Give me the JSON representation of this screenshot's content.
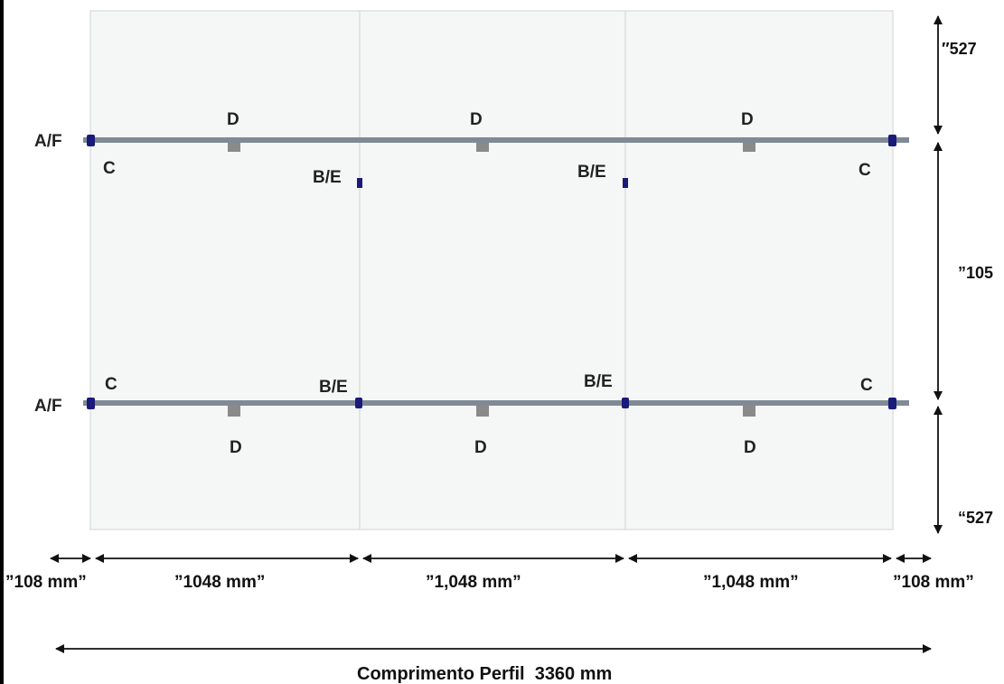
{
  "labels": {
    "af_top": "A/F",
    "af_bottom": "A/F",
    "c_top_left": "C",
    "c_top_right": "C",
    "c_bottom_left": "C",
    "c_bottom_right": "C",
    "be_top_1": "B/E",
    "be_top_2": "B/E",
    "be_bottom_1": "B/E",
    "be_bottom_2": "B/E",
    "d_top_1": "D",
    "d_top_2": "D",
    "d_top_3": "D",
    "d_bottom_1": "D",
    "d_bottom_2": "D",
    "d_bottom_3": "D"
  },
  "dimensions": {
    "right_top": "″527",
    "right_middle": "”105",
    "right_bottom": "“527",
    "bottom_edge_left": "”108 mm”",
    "bottom_span_1": "”1048 mm”",
    "bottom_span_2": "”1,048 mm”",
    "bottom_span_3": "”1,048 mm”",
    "bottom_edge_right": "”108 mm”"
  },
  "title": "Comprimento Perfil  3360 mm",
  "colors": {
    "rail": "#7f8a95",
    "clamp": "#1a1a7a",
    "bracket": "#8a8a8a",
    "panel": "#f5f6f6",
    "grid": "#dde0e2"
  }
}
